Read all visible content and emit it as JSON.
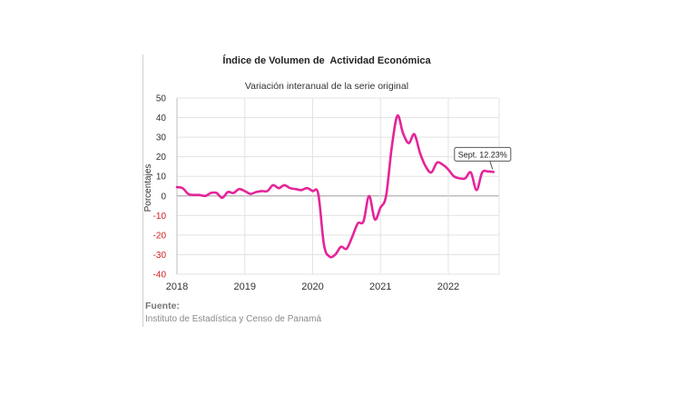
{
  "chart_data": {
    "type": "line",
    "title": "Índice de Volumen de  Actividad Económica",
    "subtitle": "Variación interanual de la serie original",
    "ylabel": "Porcentajes",
    "xlabel": "",
    "ylim": [
      -40,
      50
    ],
    "yticks": [
      50,
      40,
      30,
      20,
      10,
      0,
      -10,
      -20,
      -30,
      -40
    ],
    "xlim": [
      2018,
      2022.75
    ],
    "xticks": [
      "2018",
      "2019",
      "2020",
      "2021",
      "2022"
    ],
    "grid": true,
    "colors": {
      "line": "#e5249a",
      "negative_tick": "#d32020",
      "positive_tick": "#333333",
      "grid": "#e3e3e3",
      "zero_line": "#b0b0b0"
    },
    "annotation": {
      "text": "Sept. 12.23%",
      "x": 2022.667,
      "y": 12.23
    },
    "series": [
      {
        "x": [
          2018.0,
          2018.083,
          2018.167,
          2018.25,
          2018.333,
          2018.417,
          2018.5,
          2018.583,
          2018.667,
          2018.75,
          2018.833,
          2018.917,
          2019.0,
          2019.083,
          2019.167,
          2019.25,
          2019.333,
          2019.417,
          2019.5,
          2019.583,
          2019.667,
          2019.75,
          2019.833,
          2019.917,
          2020.0,
          2020.083,
          2020.167,
          2020.25,
          2020.333,
          2020.417,
          2020.5,
          2020.583,
          2020.667,
          2020.75,
          2020.833,
          2020.917,
          2021.0,
          2021.083,
          2021.167,
          2021.25,
          2021.333,
          2021.417,
          2021.5,
          2021.583,
          2021.667,
          2021.75,
          2021.833,
          2021.917,
          2022.0,
          2022.083,
          2022.167,
          2022.25,
          2022.333,
          2022.417,
          2022.5,
          2022.583,
          2022.667
        ],
        "y": [
          4.5,
          4.0,
          1.0,
          0.5,
          0.5,
          0.0,
          1.5,
          1.5,
          -1.0,
          2.0,
          1.5,
          3.5,
          2.5,
          1.0,
          2.0,
          2.5,
          2.5,
          5.5,
          4.0,
          5.5,
          4.0,
          3.5,
          3.0,
          4.0,
          2.5,
          1.0,
          -25.0,
          -31.0,
          -30.0,
          -26.0,
          -27.0,
          -21.0,
          -14.0,
          -13.0,
          0.0,
          -12.0,
          -6.0,
          0.0,
          25.0,
          41.0,
          32.0,
          27.0,
          31.5,
          22.0,
          15.0,
          12.0,
          17.0,
          16.0,
          13.5,
          10.0,
          9.0,
          9.0,
          12.0,
          3.0,
          12.0,
          12.5,
          12.23
        ]
      }
    ]
  },
  "source": {
    "label": "Fuente:",
    "text": "Instituto de Estadística y Censo de Panamá"
  }
}
